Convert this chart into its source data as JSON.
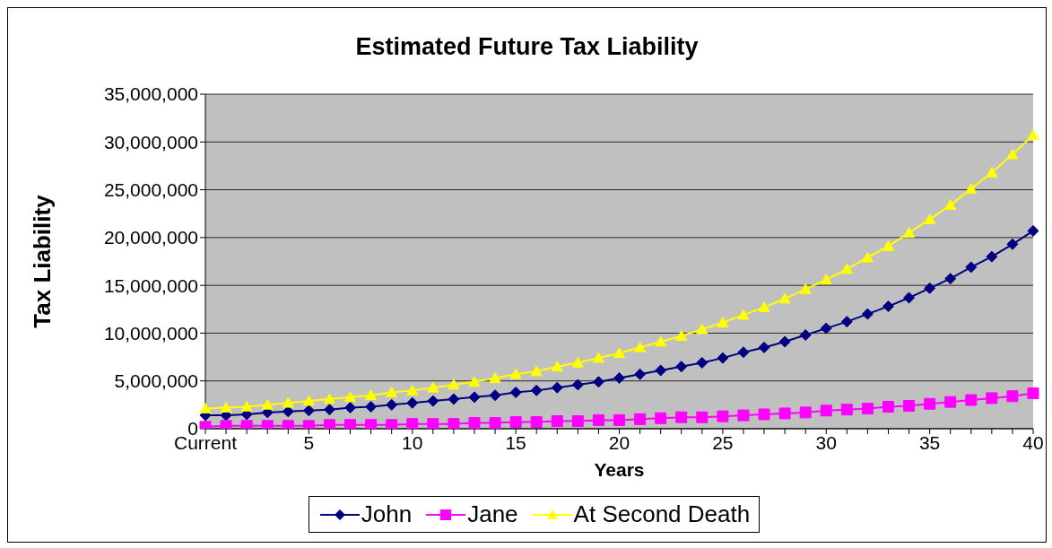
{
  "chart_data": {
    "type": "line",
    "title": "Estimated Future Tax Liability",
    "xlabel": "Years",
    "ylabel": "Tax Liability",
    "categories": [
      "Current",
      null,
      null,
      null,
      null,
      "5",
      null,
      null,
      null,
      null,
      "10",
      null,
      null,
      null,
      null,
      "15",
      null,
      null,
      null,
      null,
      "20",
      null,
      null,
      null,
      null,
      "25",
      null,
      null,
      null,
      null,
      "30",
      null,
      null,
      null,
      null,
      "35",
      null,
      null,
      null,
      null,
      "40"
    ],
    "series": [
      {
        "name": "John",
        "color": "#000080",
        "marker": "diamond",
        "values": [
          1400000,
          1400000,
          1500000,
          1700000,
          1800000,
          1900000,
          2000000,
          2200000,
          2300000,
          2500000,
          2700000,
          2900000,
          3100000,
          3300000,
          3500000,
          3800000,
          4000000,
          4300000,
          4600000,
          4900000,
          5300000,
          5700000,
          6100000,
          6500000,
          6900000,
          7400000,
          8000000,
          8500000,
          9100000,
          9800000,
          10500000,
          11200000,
          12000000,
          12800000,
          13700000,
          14700000,
          15700000,
          16900000,
          18000000,
          19300000,
          20700000
        ]
      },
      {
        "name": "Jane",
        "color": "#ff00ff",
        "marker": "square",
        "values": [
          200000,
          300000,
          300000,
          300000,
          300000,
          300000,
          400000,
          400000,
          400000,
          400000,
          500000,
          500000,
          500000,
          600000,
          600000,
          700000,
          700000,
          800000,
          800000,
          900000,
          900000,
          1000000,
          1100000,
          1200000,
          1200000,
          1300000,
          1400000,
          1500000,
          1600000,
          1700000,
          1900000,
          2000000,
          2100000,
          2300000,
          2400000,
          2600000,
          2800000,
          3000000,
          3200000,
          3400000,
          3700000
        ]
      },
      {
        "name": "At Second Death",
        "color": "#ffff00",
        "marker": "triangle",
        "values": [
          2100000,
          2200000,
          2300000,
          2500000,
          2700000,
          2900000,
          3100000,
          3300000,
          3500000,
          3800000,
          4000000,
          4300000,
          4600000,
          4900000,
          5300000,
          5700000,
          6000000,
          6500000,
          6900000,
          7400000,
          7900000,
          8500000,
          9100000,
          9700000,
          10400000,
          11100000,
          11900000,
          12700000,
          13600000,
          14600000,
          15600000,
          16700000,
          17900000,
          19100000,
          20500000,
          21900000,
          23400000,
          25100000,
          26800000,
          28700000,
          30700000
        ]
      }
    ],
    "ylim": [
      0,
      35000000
    ],
    "yticks": [
      0,
      {
        "value": 5000000,
        "label": "5,000,000"
      },
      {
        "value": 10000000,
        "label": "10,000,000"
      },
      {
        "value": 15000000,
        "label": "15,000,000"
      },
      {
        "value": 20000000,
        "label": "20,000,000"
      },
      {
        "value": 25000000,
        "label": "25,000,000"
      },
      {
        "value": 30000000,
        "label": "30,000,000"
      },
      {
        "value": 35000000,
        "label": "35,000,000"
      }
    ],
    "grid": "y",
    "legend": "bottom",
    "line_style": "solid"
  }
}
